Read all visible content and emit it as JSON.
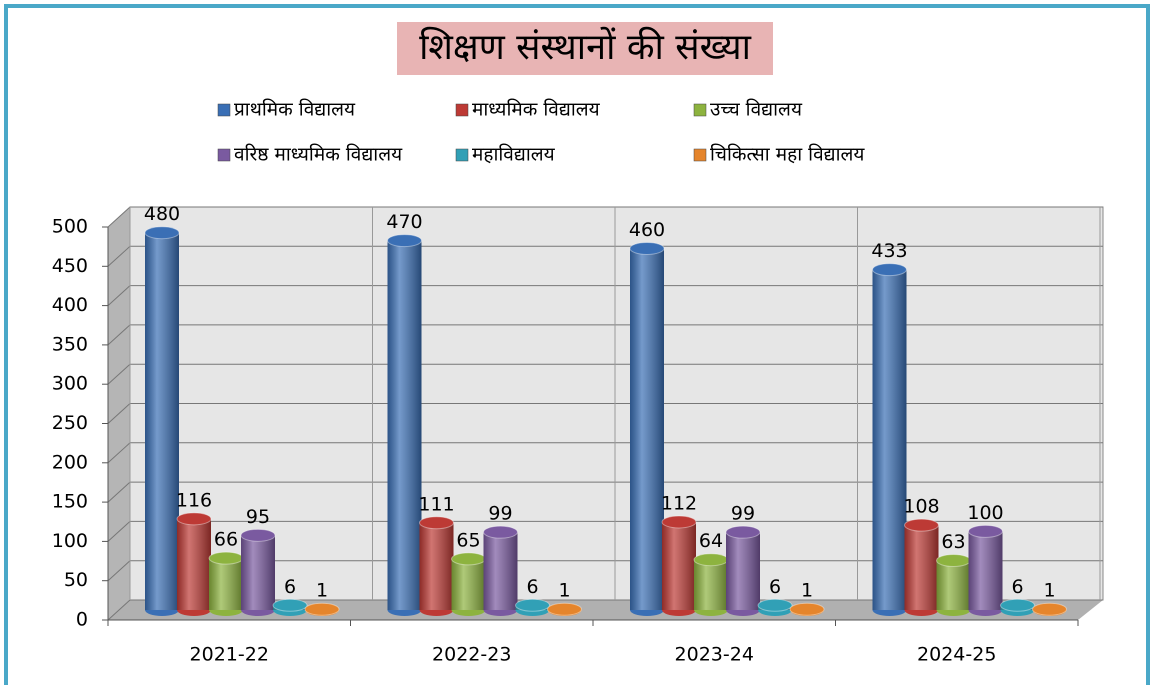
{
  "chart_data": {
    "type": "bar3d",
    "title": "शिक्षण संस्थानों की संख्या",
    "categories": [
      "2021-22",
      "2022-23",
      "2023-24",
      "2024-25"
    ],
    "series": [
      {
        "name": "प्राथमिक विद्यालय",
        "color": "#3a6fb5",
        "values": [
          480,
          470,
          460,
          433
        ]
      },
      {
        "name": "माध्यमिक विद्यालय",
        "color": "#bd3a35",
        "values": [
          116,
          111,
          112,
          108
        ]
      },
      {
        "name": "उच्च विद्यालय",
        "color": "#8db33f",
        "values": [
          66,
          65,
          64,
          63
        ]
      },
      {
        "name": "वरिष्ठ माध्यमिक विद्यालय",
        "color": "#7a5aa0",
        "values": [
          95,
          99,
          99,
          100
        ]
      },
      {
        "name": "महाविद्यालय",
        "color": "#31a0b6",
        "values": [
          6,
          6,
          6,
          6
        ]
      },
      {
        "name": "चिकित्सा महा विद्यालय",
        "color": "#e5852c",
        "values": [
          1,
          1,
          1,
          1
        ]
      }
    ],
    "ylim": [
      0,
      500
    ],
    "yticks": [
      0,
      50,
      100,
      150,
      200,
      250,
      300,
      350,
      400,
      450,
      500
    ],
    "grid": true,
    "legend": "top"
  }
}
